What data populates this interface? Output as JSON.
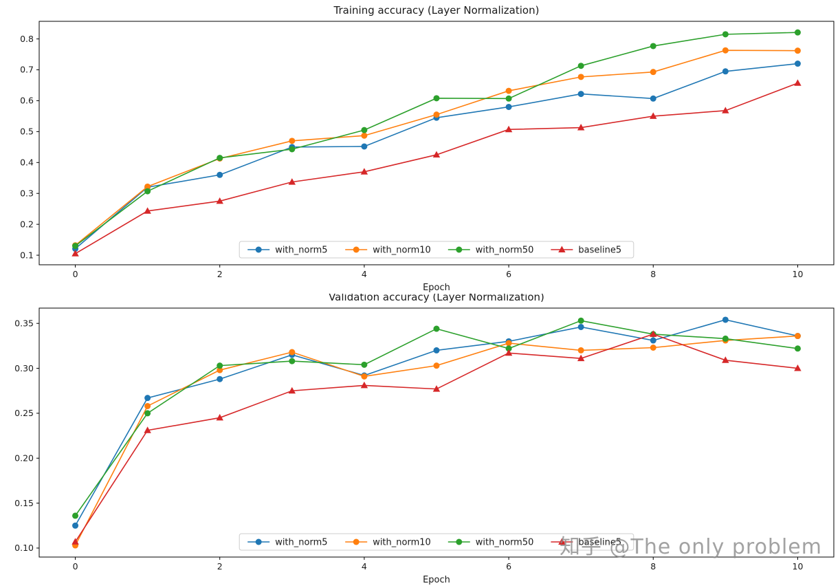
{
  "watermark": "知乎 @The only problem",
  "colors": {
    "blue": "#1f77b4",
    "orange": "#ff7f0e",
    "green": "#2ca02c",
    "red": "#d62728",
    "axis": "#000000",
    "text": "#1a1a1a",
    "legend_edge": "#cccccc"
  },
  "chart_data": [
    {
      "type": "line",
      "title": "Training accuracy (Layer Normalization)",
      "xlabel": "Epoch",
      "ylabel": "",
      "x": [
        0,
        1,
        2,
        3,
        4,
        5,
        6,
        7,
        8,
        9,
        10
      ],
      "xlim": [
        -0.5,
        10.5
      ],
      "ylim": [
        0.069,
        0.857
      ],
      "xticks": [
        0,
        2,
        4,
        6,
        8,
        10
      ],
      "yticks": [
        0.1,
        0.2,
        0.3,
        0.4,
        0.5,
        0.6,
        0.7,
        0.8
      ],
      "ytick_decimals": 1,
      "grid": false,
      "legend_position": "lower center",
      "series": [
        {
          "name": "with_norm5",
          "color": "#1f77b4",
          "marker": "circle",
          "values": [
            0.121,
            0.32,
            0.36,
            0.45,
            0.452,
            0.545,
            0.58,
            0.622,
            0.607,
            0.695,
            0.72
          ]
        },
        {
          "name": "with_norm10",
          "color": "#ff7f0e",
          "marker": "circle",
          "values": [
            0.132,
            0.322,
            0.413,
            0.47,
            0.487,
            0.555,
            0.632,
            0.677,
            0.693,
            0.763,
            0.762
          ]
        },
        {
          "name": "with_norm50",
          "color": "#2ca02c",
          "marker": "circle",
          "values": [
            0.13,
            0.307,
            0.415,
            0.443,
            0.505,
            0.608,
            0.607,
            0.713,
            0.777,
            0.815,
            0.821
          ]
        },
        {
          "name": "baseline5",
          "color": "#d62728",
          "marker": "triangle",
          "values": [
            0.105,
            0.243,
            0.275,
            0.337,
            0.37,
            0.425,
            0.507,
            0.513,
            0.55,
            0.568,
            0.657
          ]
        }
      ]
    },
    {
      "type": "line",
      "title": "Validation accuracy (Layer Normalization)",
      "xlabel": "Epoch",
      "ylabel": "",
      "x": [
        0,
        1,
        2,
        3,
        4,
        5,
        6,
        7,
        8,
        9,
        10
      ],
      "xlim": [
        -0.5,
        10.5
      ],
      "ylim": [
        0.09,
        0.367
      ],
      "xticks": [
        0,
        2,
        4,
        6,
        8,
        10
      ],
      "yticks": [
        0.1,
        0.15,
        0.2,
        0.25,
        0.3,
        0.35
      ],
      "ytick_decimals": 2,
      "grid": false,
      "legend_position": "lower center",
      "series": [
        {
          "name": "with_norm5",
          "color": "#1f77b4",
          "marker": "circle",
          "values": [
            0.125,
            0.267,
            0.288,
            0.315,
            0.292,
            0.32,
            0.33,
            0.346,
            0.331,
            0.354,
            0.336
          ]
        },
        {
          "name": "with_norm10",
          "color": "#ff7f0e",
          "marker": "circle",
          "values": [
            0.103,
            0.258,
            0.298,
            0.318,
            0.291,
            0.303,
            0.328,
            0.32,
            0.323,
            0.331,
            0.336
          ]
        },
        {
          "name": "with_norm50",
          "color": "#2ca02c",
          "marker": "circle",
          "values": [
            0.136,
            0.25,
            0.303,
            0.308,
            0.304,
            0.344,
            0.322,
            0.353,
            0.338,
            0.333,
            0.322
          ]
        },
        {
          "name": "baseline5",
          "color": "#d62728",
          "marker": "triangle",
          "values": [
            0.107,
            0.231,
            0.245,
            0.275,
            0.281,
            0.277,
            0.317,
            0.311,
            0.338,
            0.309,
            0.3
          ]
        }
      ]
    }
  ]
}
